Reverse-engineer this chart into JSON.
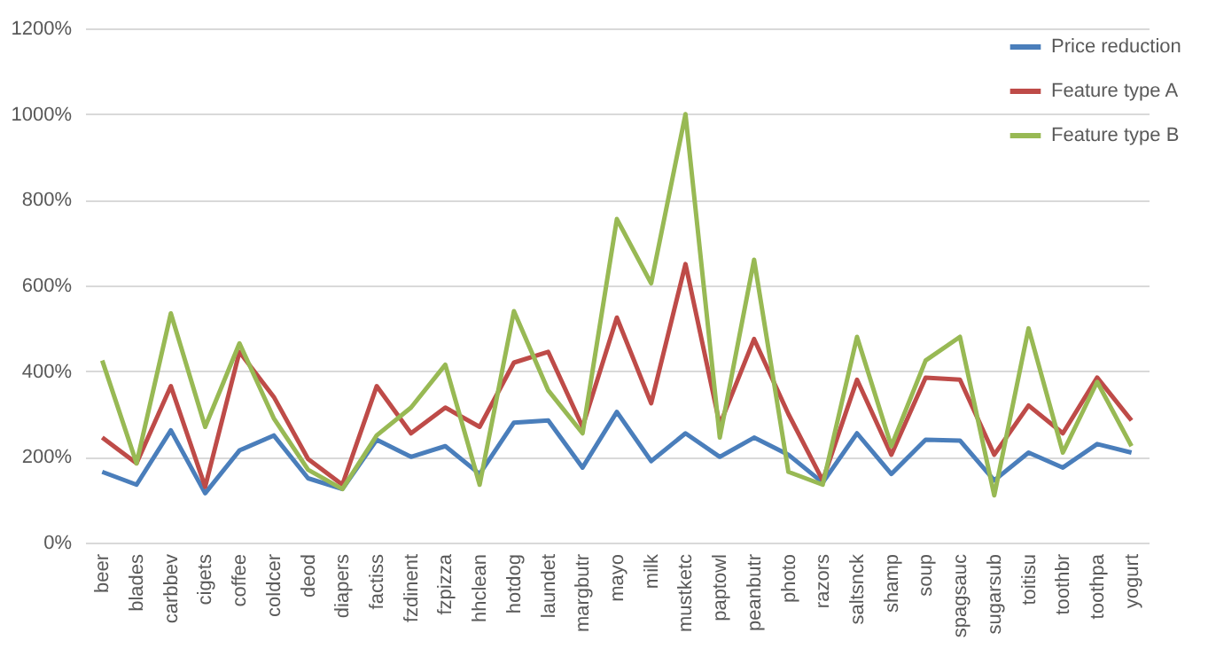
{
  "chart_data": {
    "type": "line",
    "categories": [
      "beer",
      "blades",
      "carbbev",
      "cigets",
      "coffee",
      "coldcer",
      "deod",
      "diapers",
      "factiss",
      "fzdinent",
      "fzpizza",
      "hhclean",
      "hotdog",
      "laundet",
      "margbutr",
      "mayo",
      "milk",
      "mustketc",
      "paptowl",
      "peanbutr",
      "photo",
      "razors",
      "saltsnck",
      "shamp",
      "soup",
      "spagsauc",
      "sugarsub",
      "toitisu",
      "toothbr",
      "toothpa",
      "yogurt"
    ],
    "series": [
      {
        "name": "Price reduction",
        "color": "#4a7ebb",
        "values": [
          165,
          135,
          262,
          115,
          215,
          250,
          150,
          125,
          240,
          200,
          225,
          160,
          280,
          285,
          175,
          305,
          190,
          255,
          200,
          245,
          205,
          140,
          255,
          160,
          240,
          238,
          145,
          210,
          175,
          230,
          210
        ]
      },
      {
        "name": "Feature type A",
        "color": "#be4b48",
        "values": [
          245,
          185,
          365,
          130,
          445,
          340,
          195,
          135,
          365,
          255,
          315,
          270,
          420,
          445,
          270,
          525,
          325,
          650,
          275,
          475,
          300,
          145,
          380,
          205,
          385,
          380,
          205,
          320,
          255,
          385,
          285
        ]
      },
      {
        "name": "Feature type B",
        "color": "#98b954",
        "values": [
          425,
          185,
          535,
          270,
          465,
          290,
          170,
          125,
          250,
          315,
          415,
          135,
          540,
          355,
          255,
          755,
          605,
          1000,
          245,
          660,
          165,
          135,
          480,
          225,
          425,
          480,
          110,
          500,
          210,
          375,
          225
        ]
      }
    ],
    "ylim": [
      0,
      1200
    ],
    "yticks": [
      {
        "value": 0,
        "label": "0%"
      },
      {
        "value": 200,
        "label": "200%"
      },
      {
        "value": 400,
        "label": "400%"
      },
      {
        "value": 600,
        "label": "600%"
      },
      {
        "value": 800,
        "label": "800%"
      },
      {
        "value": 1000,
        "label": "1000%"
      },
      {
        "value": 1200,
        "label": "1200%"
      }
    ],
    "grid": "y",
    "legend": "top right",
    "line_style": "solid",
    "marker": "none"
  }
}
